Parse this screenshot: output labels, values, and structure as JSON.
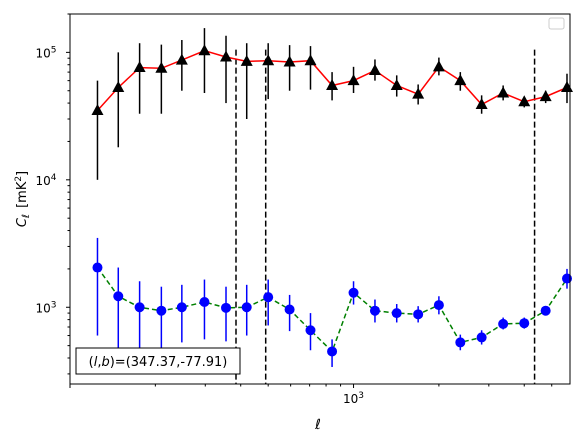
{
  "chart_data": {
    "type": "scatter",
    "xscale": "log",
    "yscale": "log",
    "xlim": [
      100,
      5800
    ],
    "ylim": [
      250,
      200000
    ],
    "xlabel": "ℓ",
    "ylabel_main": "C",
    "ylabel_sub": "ℓ",
    "ylabel_unit": "[mK",
    "ylabel_unit_sup": "2",
    "ylabel_unit_end": "]",
    "x_ticks": [
      {
        "value": 1000,
        "base": "10",
        "exp": "3"
      }
    ],
    "y_ticks": [
      {
        "value": 1000,
        "base": "10",
        "exp": "3"
      },
      {
        "value": 10000,
        "base": "10",
        "exp": "4"
      },
      {
        "value": 100000,
        "base": "10",
        "exp": "5"
      }
    ],
    "vlines": [
      385,
      490,
      4350
    ],
    "annotation": "(l,b)=(347.37,-77.91)",
    "annotation_l": "l",
    "annotation_b": "b",
    "annotation_rest": "=(347.37,-77.91)",
    "legend_empty": true,
    "colors": {
      "upper_line": "#ff0000",
      "upper_marker": "#000000",
      "lower_line": "#008000",
      "lower_marker": "#0000ff",
      "vline": "#000000"
    },
    "series": [
      {
        "marker": "triangle",
        "points": [
          {
            "x": 125,
            "y": 35000,
            "lo": 10000,
            "hi": 60000
          },
          {
            "x": 148,
            "y": 53000,
            "lo": 18000,
            "hi": 100000
          },
          {
            "x": 176,
            "y": 76000,
            "lo": 33000,
            "hi": 118000
          },
          {
            "x": 210,
            "y": 75000,
            "lo": 33000,
            "hi": 115000
          },
          {
            "x": 248,
            "y": 87000,
            "lo": 50000,
            "hi": 125000
          },
          {
            "x": 298,
            "y": 103000,
            "lo": 48000,
            "hi": 155000
          },
          {
            "x": 355,
            "y": 92000,
            "lo": 40000,
            "hi": 135000
          },
          {
            "x": 420,
            "y": 85000,
            "lo": 30000,
            "hi": 118000
          },
          {
            "x": 500,
            "y": 86000,
            "lo": 43000,
            "hi": 118000
          },
          {
            "x": 595,
            "y": 84000,
            "lo": 50000,
            "hi": 114000
          },
          {
            "x": 705,
            "y": 86000,
            "lo": 51000,
            "hi": 112000
          },
          {
            "x": 840,
            "y": 55000,
            "lo": 42000,
            "hi": 70000
          },
          {
            "x": 1000,
            "y": 60000,
            "lo": 48000,
            "hi": 77000
          },
          {
            "x": 1190,
            "y": 72000,
            "lo": 60000,
            "hi": 88000
          },
          {
            "x": 1420,
            "y": 55000,
            "lo": 45000,
            "hi": 66000
          },
          {
            "x": 1690,
            "y": 47000,
            "lo": 39000,
            "hi": 56000
          },
          {
            "x": 2000,
            "y": 77000,
            "lo": 66000,
            "hi": 91000
          },
          {
            "x": 2380,
            "y": 60000,
            "lo": 50000,
            "hi": 70000
          },
          {
            "x": 2830,
            "y": 39000,
            "lo": 33000,
            "hi": 46000
          },
          {
            "x": 3370,
            "y": 48000,
            "lo": 42000,
            "hi": 55000
          },
          {
            "x": 4000,
            "y": 41000,
            "lo": 37000,
            "hi": 45000
          },
          {
            "x": 4760,
            "y": 45000,
            "lo": 40000,
            "hi": 50000
          },
          {
            "x": 5660,
            "y": 53000,
            "lo": 40000,
            "hi": 68000
          }
        ]
      },
      {
        "marker": "circle",
        "points": [
          {
            "x": 125,
            "y": 2050,
            "lo": 600,
            "hi": 3500
          },
          {
            "x": 148,
            "y": 1220,
            "lo": 430,
            "hi": 2050
          },
          {
            "x": 176,
            "y": 1000,
            "lo": 440,
            "hi": 1600
          },
          {
            "x": 210,
            "y": 940,
            "lo": 400,
            "hi": 1450
          },
          {
            "x": 248,
            "y": 1000,
            "lo": 530,
            "hi": 1500
          },
          {
            "x": 298,
            "y": 1100,
            "lo": 560,
            "hi": 1650
          },
          {
            "x": 355,
            "y": 990,
            "lo": 540,
            "hi": 1450
          },
          {
            "x": 420,
            "y": 1000,
            "lo": 600,
            "hi": 1500
          },
          {
            "x": 500,
            "y": 1200,
            "lo": 720,
            "hi": 1650
          },
          {
            "x": 595,
            "y": 960,
            "lo": 650,
            "hi": 1250
          },
          {
            "x": 705,
            "y": 660,
            "lo": 460,
            "hi": 900
          },
          {
            "x": 840,
            "y": 450,
            "lo": 340,
            "hi": 560
          },
          {
            "x": 1000,
            "y": 1300,
            "lo": 1050,
            "hi": 1600
          },
          {
            "x": 1190,
            "y": 940,
            "lo": 760,
            "hi": 1150
          },
          {
            "x": 1420,
            "y": 900,
            "lo": 760,
            "hi": 1060
          },
          {
            "x": 1690,
            "y": 880,
            "lo": 760,
            "hi": 1020
          },
          {
            "x": 2000,
            "y": 1040,
            "lo": 880,
            "hi": 1220
          },
          {
            "x": 2380,
            "y": 530,
            "lo": 460,
            "hi": 610
          },
          {
            "x": 2830,
            "y": 580,
            "lo": 510,
            "hi": 660
          },
          {
            "x": 3370,
            "y": 740,
            "lo": 670,
            "hi": 830
          },
          {
            "x": 4000,
            "y": 750,
            "lo": 680,
            "hi": 830
          },
          {
            "x": 4760,
            "y": 940,
            "lo": 870,
            "hi": 1020
          },
          {
            "x": 5660,
            "y": 1680,
            "lo": 1400,
            "hi": 2000
          }
        ]
      }
    ]
  }
}
